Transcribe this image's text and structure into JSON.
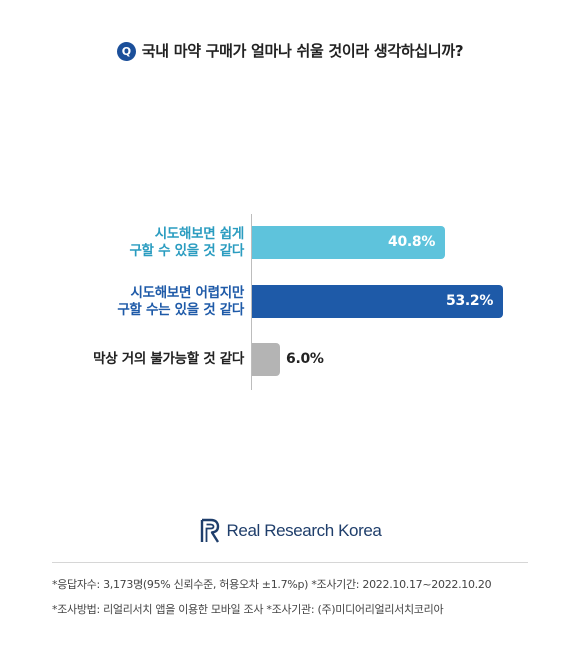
{
  "question": {
    "badge": "Q",
    "text": "국내 마약 구매가 얼마나 쉬울 것이라 생각하십니까?"
  },
  "chart_data": {
    "type": "bar",
    "orientation": "horizontal",
    "categories": [
      "시도해보면 쉽게\n구할 수 있을 것 같다",
      "시도해보면 어렵지만\n구할 수는 있을 것 같다",
      "막상 거의 불가능할 것 같다"
    ],
    "values": [
      40.8,
      53.2,
      6.0
    ],
    "value_labels": [
      "40.8%",
      "53.2%",
      "6.0%"
    ],
    "unit": "%",
    "xlim": [
      0,
      100
    ],
    "grid": false,
    "colors": [
      "#5ec3dc",
      "#1e5aa8",
      "#b4b4b4"
    ],
    "label_colors": [
      "#2a9cc0",
      "#1e5aa8",
      "#222222"
    ]
  },
  "brand": {
    "name": "Real Research Korea",
    "color": "#1f3e6b",
    "icon": "rr-logo-icon"
  },
  "footnotes": [
    "*응답자수: 3,173명(95% 신뢰수준, 허용오차 ±1.7%p)  *조사기간: 2022.10.17~2022.10.20",
    "*조사방법: 리얼리서치 앱을 이용한 모바일 조사  *조사기관: (주)미디어리얼리서치코리아"
  ]
}
